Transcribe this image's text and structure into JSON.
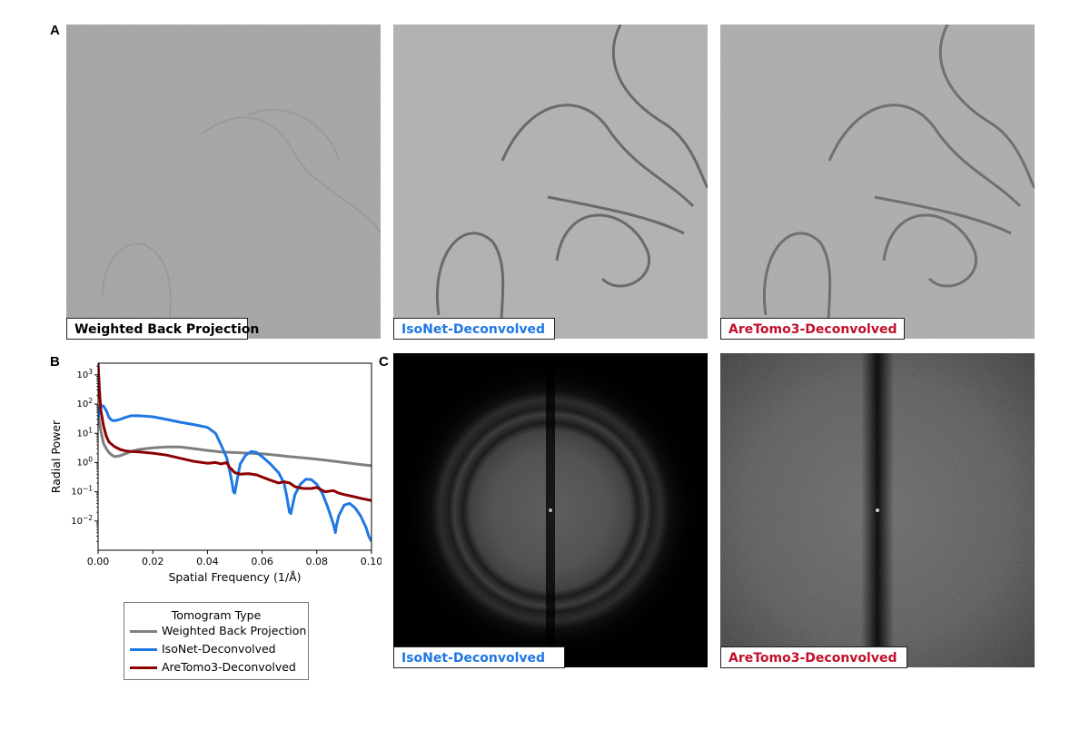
{
  "panels": {
    "A": "A",
    "B": "B",
    "C": "C"
  },
  "tomograms": [
    {
      "label": "Weighted Back Projection",
      "color": "#000000"
    },
    {
      "label": "IsoNet-Deconvolved",
      "color": "#1f77e4"
    },
    {
      "label": "AreTomo3-Deconvolved",
      "color": "#c0102a"
    }
  ],
  "fft_labels": [
    {
      "label": "IsoNet-Deconvolved",
      "color": "#1f77e4"
    },
    {
      "label": "AreTomo3-Deconvolved",
      "color": "#c0102a"
    }
  ],
  "legend": {
    "title": "Tomogram Type",
    "entries": [
      {
        "label": "Weighted Back Projection",
        "color": "#7f7f7f"
      },
      {
        "label": "IsoNet-Deconvolved",
        "color": "#1f77e4"
      },
      {
        "label": "AreTomo3-Deconvolved",
        "color": "#8b0000"
      }
    ]
  },
  "chart_data": {
    "type": "line",
    "xlabel": "Spatial Frequency (1/Å)",
    "ylabel": "Radial Power",
    "xlim": [
      0.0,
      0.1
    ],
    "ylim_log10": [
      -3.0,
      3.4
    ],
    "yscale": "log",
    "xticks": [
      "0.00",
      "0.02",
      "0.04",
      "0.06",
      "0.08",
      "0.10"
    ],
    "xtick_values": [
      0.0,
      0.02,
      0.04,
      0.06,
      0.08,
      0.1
    ],
    "yticks": [
      -2,
      -1,
      0,
      1,
      2,
      3
    ],
    "series": [
      {
        "name": "Weighted Back Projection",
        "color": "#7f7f7f",
        "x": [
          0.0,
          0.001,
          0.002,
          0.003,
          0.004,
          0.005,
          0.006,
          0.008,
          0.01,
          0.012,
          0.015,
          0.02,
          0.025,
          0.03,
          0.035,
          0.04,
          0.045,
          0.05,
          0.055,
          0.06,
          0.065,
          0.07,
          0.075,
          0.08,
          0.085,
          0.09,
          0.095,
          0.1
        ],
        "y": [
          50,
          12,
          4.5,
          3.0,
          2.2,
          1.8,
          1.6,
          1.7,
          2.0,
          2.4,
          2.8,
          3.2,
          3.4,
          3.4,
          3.0,
          2.6,
          2.3,
          2.2,
          2.1,
          2.0,
          1.8,
          1.6,
          1.45,
          1.3,
          1.15,
          1.0,
          0.88,
          0.78
        ]
      },
      {
        "name": "IsoNet-Deconvolved",
        "color": "#1f77e4",
        "x": [
          0.0,
          0.0005,
          0.001,
          0.002,
          0.003,
          0.004,
          0.005,
          0.006,
          0.008,
          0.01,
          0.012,
          0.015,
          0.02,
          0.025,
          0.03,
          0.035,
          0.04,
          0.043,
          0.045,
          0.047,
          0.048,
          0.049,
          0.0495,
          0.05,
          0.051,
          0.052,
          0.054,
          0.056,
          0.058,
          0.06,
          0.063,
          0.066,
          0.068,
          0.069,
          0.07,
          0.0705,
          0.071,
          0.072,
          0.074,
          0.076,
          0.078,
          0.08,
          0.082,
          0.084,
          0.086,
          0.0868,
          0.087,
          0.088,
          0.09,
          0.092,
          0.094,
          0.096,
          0.098,
          0.099,
          0.1
        ],
        "y": [
          30,
          80,
          90,
          85,
          60,
          35,
          28,
          27,
          30,
          35,
          40,
          40,
          37,
          30,
          24,
          20,
          16,
          10,
          4,
          1.5,
          0.6,
          0.2,
          0.1,
          0.09,
          0.3,
          0.9,
          1.8,
          2.4,
          2.2,
          1.6,
          0.9,
          0.45,
          0.2,
          0.07,
          0.02,
          0.018,
          0.03,
          0.08,
          0.18,
          0.27,
          0.26,
          0.18,
          0.09,
          0.03,
          0.008,
          0.004,
          0.006,
          0.015,
          0.035,
          0.04,
          0.028,
          0.015,
          0.006,
          0.003,
          0.002
        ]
      },
      {
        "name": "AreTomo3-Deconvolved",
        "color": "#8b0000",
        "x": [
          0.0,
          0.0005,
          0.001,
          0.002,
          0.003,
          0.004,
          0.006,
          0.008,
          0.01,
          0.012,
          0.015,
          0.02,
          0.025,
          0.03,
          0.035,
          0.04,
          0.043,
          0.045,
          0.047,
          0.048,
          0.05,
          0.052,
          0.055,
          0.058,
          0.06,
          0.063,
          0.066,
          0.068,
          0.07,
          0.072,
          0.075,
          0.078,
          0.08,
          0.083,
          0.086,
          0.088,
          0.09,
          0.093,
          0.096,
          0.1
        ],
        "y": [
          2500,
          300,
          60,
          18,
          8,
          5,
          3.5,
          2.8,
          2.5,
          2.4,
          2.3,
          2.1,
          1.8,
          1.4,
          1.1,
          0.95,
          1.0,
          0.9,
          1.0,
          0.7,
          0.45,
          0.4,
          0.42,
          0.38,
          0.32,
          0.25,
          0.2,
          0.22,
          0.2,
          0.15,
          0.13,
          0.13,
          0.14,
          0.1,
          0.11,
          0.09,
          0.08,
          0.07,
          0.06,
          0.05
        ]
      }
    ]
  }
}
